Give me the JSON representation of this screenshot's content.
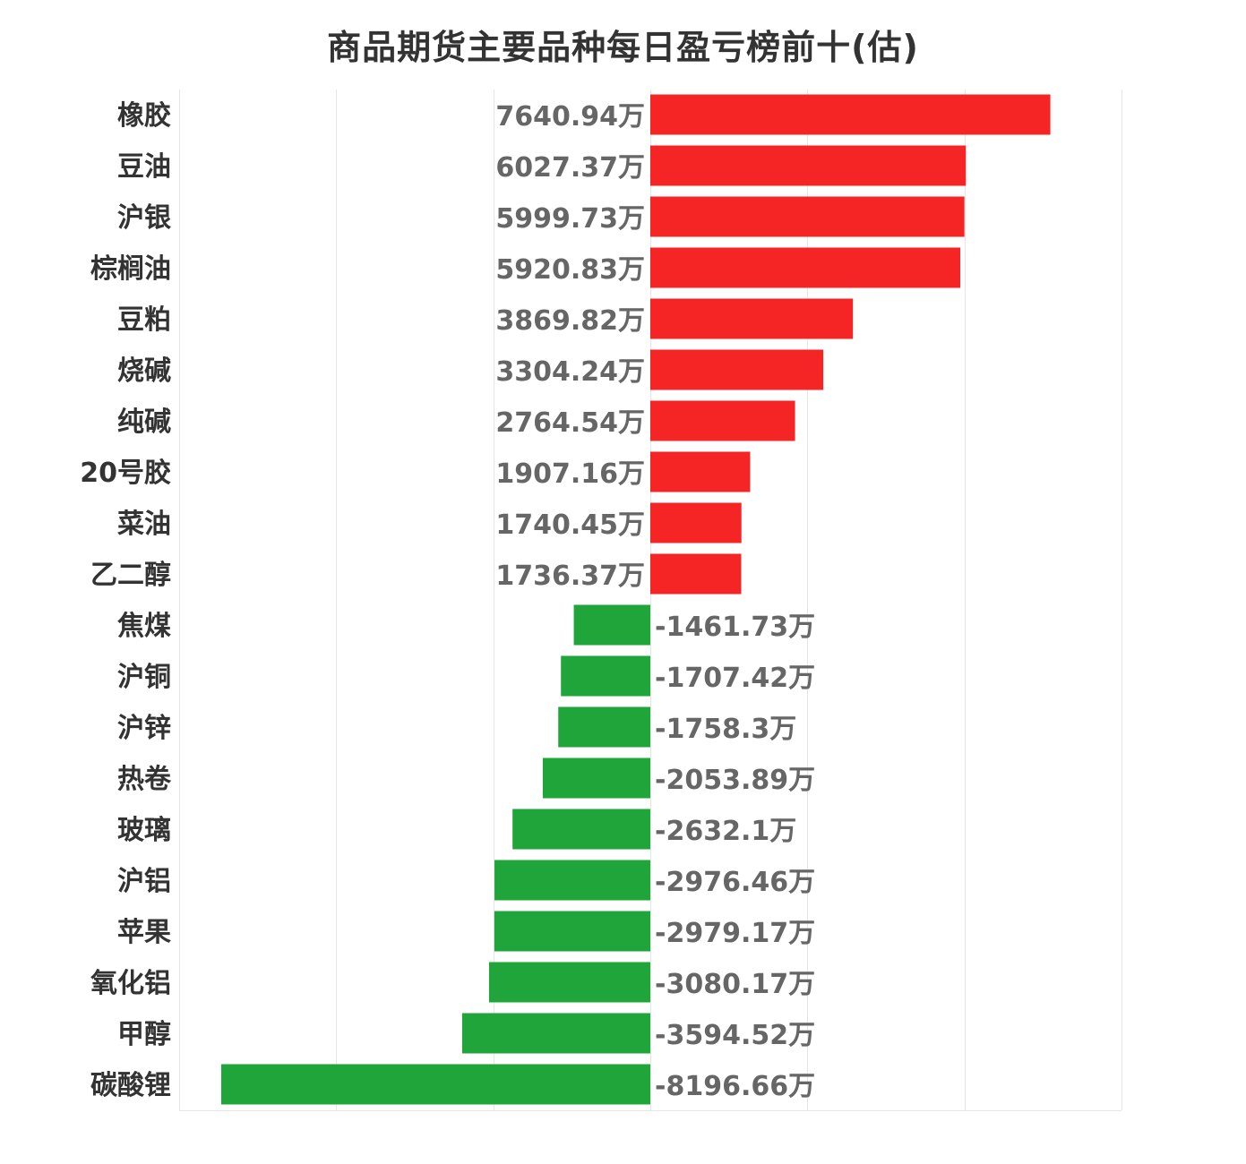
{
  "chart_data": {
    "type": "bar",
    "orientation": "horizontal",
    "title": "商品期货主要品种每日盈亏榜前十(估)",
    "unit": "万",
    "categories": [
      "橡胶",
      "豆油",
      "沪银",
      "棕榈油",
      "豆粕",
      "烧碱",
      "纯碱",
      "20号胶",
      "菜油",
      "乙二醇",
      "焦煤",
      "沪铜",
      "沪锌",
      "热卷",
      "玻璃",
      "沪铝",
      "苹果",
      "氧化铝",
      "甲醇",
      "碳酸锂"
    ],
    "values": [
      7640.94,
      6027.37,
      5999.73,
      5920.83,
      3869.82,
      3304.24,
      2764.54,
      1907.16,
      1740.45,
      1736.37,
      -1461.73,
      -1707.42,
      -1758.3,
      -2053.89,
      -2632.1,
      -2976.46,
      -2979.17,
      -3080.17,
      -3594.52,
      -8196.66
    ],
    "labels": [
      "7640.94万",
      "6027.37万",
      "5999.73万",
      "5920.83万",
      "3869.82万",
      "3304.24万",
      "2764.54万",
      "1907.16万",
      "1740.45万",
      "1736.37万",
      "-1461.73万",
      "-1707.42万",
      "-1758.3万",
      "-2053.89万",
      "-2632.1万",
      "-2976.46万",
      "-2979.17万",
      "-3080.17万",
      "-3594.52万",
      "-8196.66万"
    ],
    "xlim": [
      -9000,
      9000
    ],
    "grid": true,
    "colors": {
      "positive": "#f52525",
      "negative": "#20a53a"
    }
  }
}
